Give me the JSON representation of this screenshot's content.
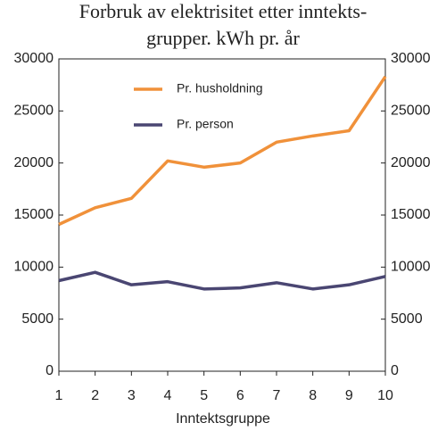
{
  "chart_data": {
    "type": "line",
    "title": [
      "Forbruk av elektrisitet etter inntekts-",
      "grupper. kWh pr. år"
    ],
    "x_label": "Inntektsgruppe",
    "x": [
      1,
      2,
      3,
      4,
      5,
      6,
      7,
      8,
      9,
      10
    ],
    "xlim": [
      1,
      10
    ],
    "xticks": [
      1,
      2,
      3,
      4,
      5,
      6,
      7,
      8,
      9,
      10
    ],
    "ylim": [
      0,
      30000
    ],
    "yticks": [
      0,
      5000,
      10000,
      15000,
      20000,
      25000,
      30000
    ],
    "y2lim": [
      0,
      30000
    ],
    "y2ticks": [
      0,
      5000,
      10000,
      15000,
      20000,
      25000,
      30000
    ],
    "series": [
      {
        "name": "Pr. husholdning",
        "color": "#f0913a",
        "values": [
          14100,
          15700,
          16600,
          20200,
          19600,
          20000,
          22000,
          22600,
          23100,
          28300
        ]
      },
      {
        "name": "Pr. person",
        "color": "#4a4672",
        "values": [
          8700,
          9500,
          8300,
          8600,
          7900,
          8000,
          8500,
          7900,
          8300,
          9100
        ]
      }
    ]
  }
}
